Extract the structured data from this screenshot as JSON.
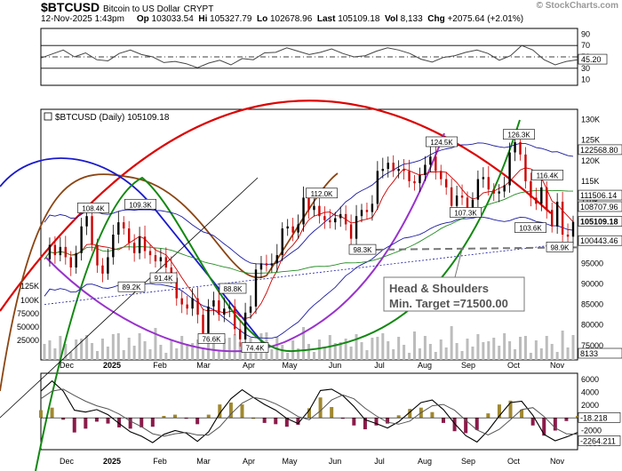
{
  "header": {
    "symbol": "$BTCUSD",
    "name": "Bitcoin to US Dollar",
    "exchange": "CRYPT",
    "datetime": "12-Nov-2025 1:43pm",
    "open": "103033.54",
    "high": "105327.79",
    "low": "102678.96",
    "last": "105109.18",
    "vol": "8,133",
    "chg": "+2075.64 (+2.01%)",
    "labels": {
      "open": "Op",
      "high": "Hi",
      "low": "Lo",
      "last": "Last",
      "vol": "Vol",
      "chg": "Chg"
    },
    "brand_prefix": "© ",
    "brand": "StockCharts.com"
  },
  "chart_data": [
    {
      "type": "line",
      "panel": "rsi",
      "y_ticks": [
        "90",
        "70",
        "50",
        "30",
        "10"
      ],
      "ylim": [
        0,
        100
      ],
      "guide_lines": [
        70,
        50,
        30
      ],
      "value_label": "45.20",
      "values": [
        48,
        55,
        62,
        50,
        57,
        45,
        43,
        56,
        62,
        54,
        50,
        40,
        42,
        38,
        31,
        39,
        44,
        36,
        47,
        45,
        57,
        58,
        66,
        60,
        54,
        58,
        64,
        56,
        50,
        52,
        60,
        66,
        62,
        56,
        46,
        41,
        49,
        52,
        58,
        62,
        56,
        44,
        52,
        70,
        62,
        45,
        36,
        42,
        45
      ]
    },
    {
      "type": "line",
      "panel": "price",
      "legend": "$BTCUSD (Daily) 105109.18",
      "y_ticks": [
        "130K",
        "125K",
        "120K",
        "115K",
        "110K",
        "105K",
        "100K",
        "95000",
        "90000",
        "85000",
        "80000",
        "75000"
      ],
      "ylim": [
        71500,
        132500
      ],
      "volume_ticks": [
        "125K",
        "100K",
        "75000",
        "50000",
        "25000"
      ],
      "right_labels": [
        "122568.80",
        "111506.14",
        "108707.96",
        "105109.18",
        "100443.46",
        "8133"
      ],
      "x_ticks": [
        "Dec",
        "2025",
        "Feb",
        "Mar",
        "Apr",
        "May",
        "Jun",
        "Jul",
        "Aug",
        "Sep",
        "Oct",
        "Nov"
      ],
      "annotations": {
        "pivots": [
          "108.4K",
          "109.3K",
          "89.2K",
          "91.4K",
          "88.8K",
          "76.6K",
          "74.4K",
          "112.0K",
          "98.3K",
          "124.5K",
          "107.3K",
          "126.3K",
          "116.4K",
          "103.6K",
          "98.9K"
        ],
        "pattern_line1": "Head & Shoulders",
        "pattern_line2": "Min. Target =71500.00"
      },
      "close": [
        96000,
        99500,
        97000,
        99000,
        96500,
        94000,
        97500,
        104000,
        106500,
        99500,
        94500,
        92500,
        96500,
        102000,
        105000,
        103500,
        100000,
        97500,
        101500,
        98000,
        97000,
        95500,
        96500,
        94000,
        91500,
        86500,
        85000,
        84000,
        86500,
        82500,
        78000,
        84500,
        86000,
        82500,
        84000,
        84500,
        79000,
        76500,
        83000,
        84500,
        93500,
        95000,
        94500,
        95000,
        97000,
        103500,
        104000,
        102500,
        104500,
        111000,
        108000,
        109000,
        106500,
        105500,
        105000,
        106000,
        107000,
        104500,
        101000,
        106500,
        108000,
        107500,
        109500,
        117500,
        118000,
        119500,
        117500,
        118000,
        117500,
        115000,
        114500,
        116500,
        119000,
        121000,
        117500,
        115500,
        113500,
        109000,
        111500,
        111000,
        108500,
        110500,
        115500,
        116000,
        113000,
        112000,
        112500,
        114000,
        122000,
        124500,
        121500,
        115000,
        111000,
        109500,
        113500,
        108000,
        104000,
        110000,
        102000,
        101500,
        105100
      ]
    },
    {
      "type": "line",
      "panel": "macd",
      "y_ticks": [
        "6000",
        "4000",
        "2000",
        "0",
        "-2000",
        "-4000"
      ],
      "ylim": [
        -5000,
        7000
      ],
      "right_labels": [
        "-18.218",
        "-2264.211"
      ],
      "macd": [
        4200,
        5800,
        4200,
        1200,
        900,
        1300,
        500,
        -900,
        -2200,
        -2900,
        -3900,
        -2600,
        -2000,
        -2400,
        -3700,
        -2200,
        700,
        3000,
        4400,
        3200,
        2100,
        1200,
        -100,
        -900,
        1200,
        4300,
        4500,
        3500,
        1800,
        -300,
        -900,
        -1600,
        -600,
        900,
        2400,
        2800,
        1300,
        -900,
        -2800,
        -3800,
        -2000,
        300,
        2400,
        2600,
        400,
        -2600,
        -3600,
        -3000,
        -2300
      ],
      "signal": [
        3000,
        4200,
        4500,
        3500,
        2600,
        1900,
        1400,
        600,
        -500,
        -1400,
        -2500,
        -2900,
        -2500,
        -2300,
        -2700,
        -2700,
        -1400,
        600,
        2300,
        3200,
        2900,
        2200,
        1300,
        200,
        -300,
        1100,
        2800,
        3600,
        3000,
        1500,
        300,
        -700,
        -1000,
        -500,
        800,
        1900,
        2100,
        1200,
        -400,
        -1900,
        -2700,
        -1800,
        -300,
        1300,
        1600,
        200,
        -1600,
        -2500,
        -2600
      ]
    }
  ],
  "colors": {
    "up": "#000000",
    "down": "#cc0000",
    "ma_red": "#cc0000",
    "ma_green": "#228b22",
    "band": "#1a1aa0",
    "volume": "#bcbcbc"
  }
}
